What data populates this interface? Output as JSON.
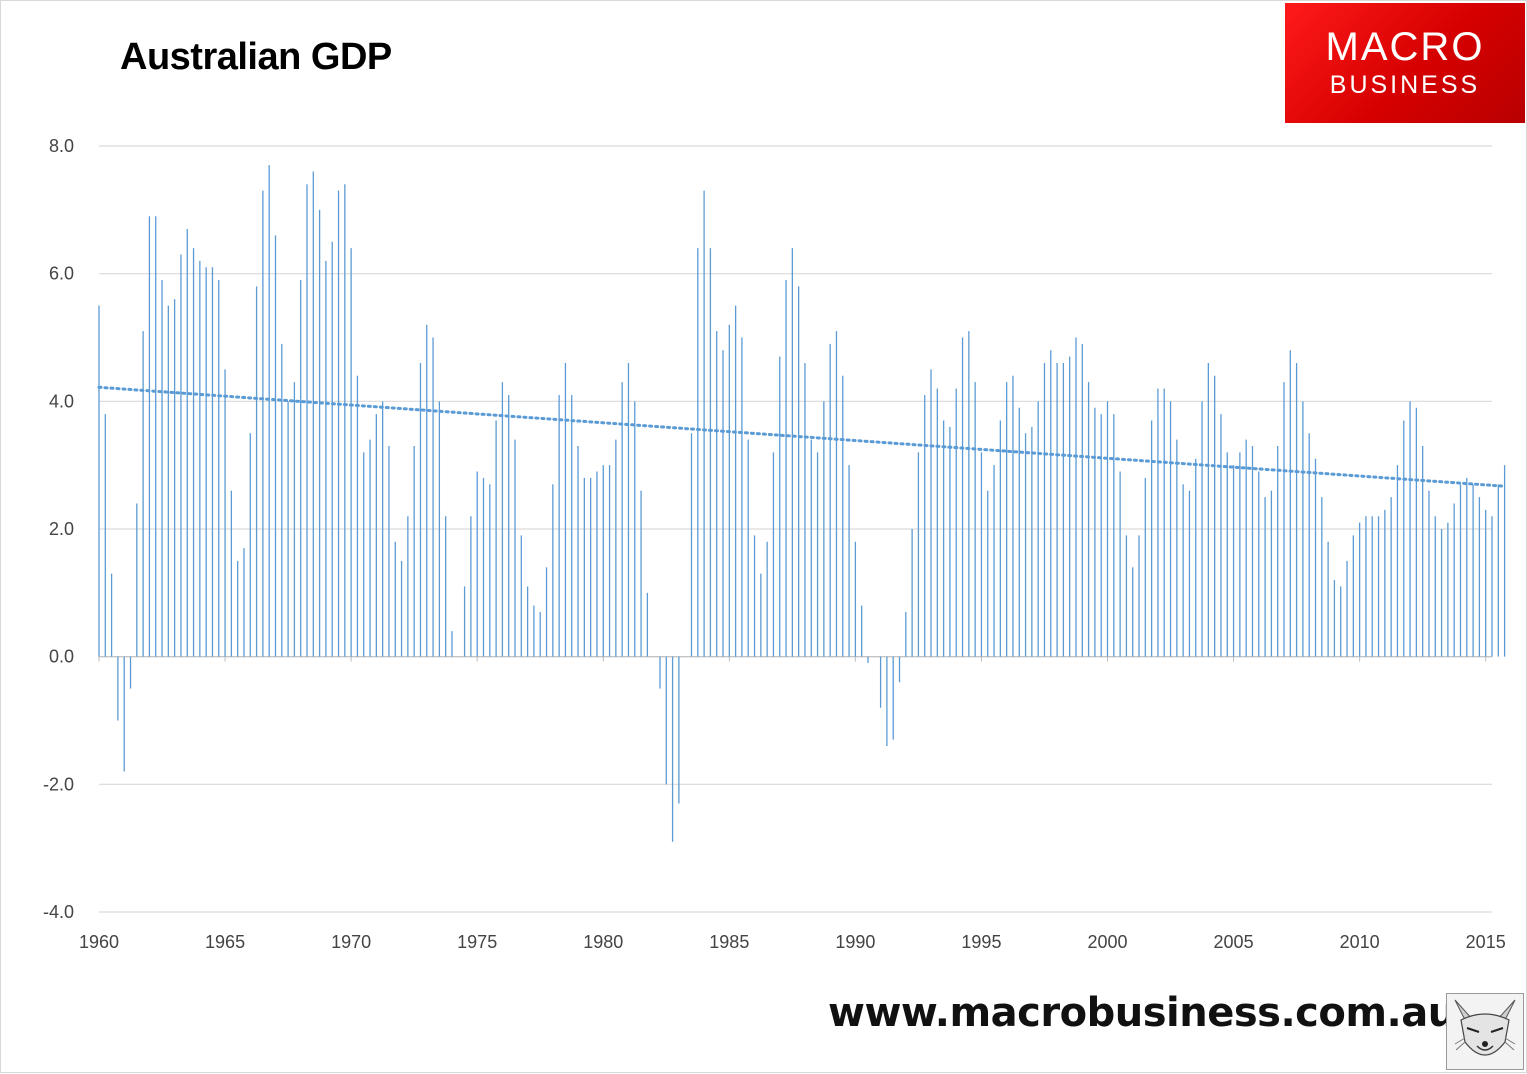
{
  "header": {
    "title": "Australian GDP"
  },
  "logo": {
    "line1": "MACRO",
    "line2": "BUSINESS",
    "color": "#e00000"
  },
  "footer": {
    "url": "www.macrobusiness.com.au",
    "mascot_icon": "fox-icon"
  },
  "chart_data": {
    "type": "bar",
    "title": "Australian GDP",
    "xlabel": "",
    "ylabel": "",
    "ylim": [
      -4,
      8
    ],
    "yticks": [
      "-4.0",
      "-2.0",
      "0.0",
      "2.0",
      "4.0",
      "6.0",
      "8.0"
    ],
    "xlim": [
      1960,
      2015.25
    ],
    "xticks": [
      "1960",
      "1965",
      "1970",
      "1975",
      "1980",
      "1985",
      "1990",
      "1995",
      "2000",
      "2005",
      "2010",
      "2015"
    ],
    "grid": true,
    "bar_color": "#5b9bd5",
    "x_start": "1960",
    "x_step": "quarterly",
    "values": [
      5.5,
      3.8,
      1.3,
      -1.0,
      -1.8,
      -0.5,
      2.4,
      5.1,
      6.9,
      6.9,
      5.9,
      5.5,
      5.6,
      6.3,
      6.7,
      6.4,
      6.2,
      6.1,
      6.1,
      5.9,
      4.5,
      2.6,
      1.5,
      1.7,
      3.5,
      5.8,
      7.3,
      7.7,
      6.6,
      4.9,
      4.0,
      4.3,
      5.9,
      7.4,
      7.6,
      7.0,
      6.2,
      6.5,
      7.3,
      7.4,
      6.4,
      4.4,
      3.2,
      3.4,
      3.8,
      4.0,
      3.3,
      1.8,
      1.5,
      2.2,
      3.3,
      4.6,
      5.2,
      5.0,
      4.0,
      2.2,
      0.4,
      0.0,
      1.1,
      2.2,
      2.9,
      2.8,
      2.7,
      3.7,
      4.3,
      4.1,
      3.4,
      1.9,
      1.1,
      0.8,
      0.7,
      1.4,
      2.7,
      4.1,
      4.6,
      4.1,
      3.3,
      2.8,
      2.8,
      2.9,
      3.0,
      3.0,
      3.4,
      4.3,
      4.6,
      4.0,
      2.6,
      1.0,
      0.0,
      -0.5,
      -2.0,
      -2.9,
      -2.3,
      0.0,
      3.5,
      6.4,
      7.3,
      6.4,
      5.1,
      4.8,
      5.2,
      5.5,
      5.0,
      3.4,
      1.9,
      1.3,
      1.8,
      3.2,
      4.7,
      5.9,
      6.4,
      5.8,
      4.6,
      3.4,
      3.2,
      4.0,
      4.9,
      5.1,
      4.4,
      3.0,
      1.8,
      0.8,
      -0.1,
      0.0,
      -0.8,
      -1.4,
      -1.3,
      -0.4,
      0.7,
      2.0,
      3.2,
      4.1,
      4.5,
      4.2,
      3.7,
      3.6,
      4.2,
      5.0,
      5.1,
      4.3,
      3.2,
      2.6,
      3.0,
      3.7,
      4.3,
      4.4,
      3.9,
      3.5,
      3.6,
      4.0,
      4.6,
      4.8,
      4.6,
      4.6,
      4.7,
      5.0,
      4.9,
      4.3,
      3.9,
      3.8,
      4.0,
      3.8,
      2.9,
      1.9,
      1.4,
      1.9,
      2.8,
      3.7,
      4.2,
      4.2,
      4.0,
      3.4,
      2.7,
      2.6,
      3.1,
      4.0,
      4.6,
      4.4,
      3.8,
      3.2,
      3.0,
      3.2,
      3.4,
      3.3,
      2.9,
      2.5,
      2.6,
      3.3,
      4.3,
      4.8,
      4.6,
      4.0,
      3.5,
      3.1,
      2.5,
      1.8,
      1.2,
      1.1,
      1.5,
      1.9,
      2.1,
      2.2,
      2.2,
      2.2,
      2.3,
      2.5,
      3.0,
      3.7,
      4.0,
      3.9,
      3.3,
      2.6,
      2.2,
      2.0,
      2.1,
      2.4,
      2.7,
      2.8,
      2.7,
      2.5,
      2.3,
      2.2,
      2.7,
      3.0
    ],
    "trendline": {
      "style": "dotted",
      "start": 4.22,
      "end": 2.67
    }
  }
}
